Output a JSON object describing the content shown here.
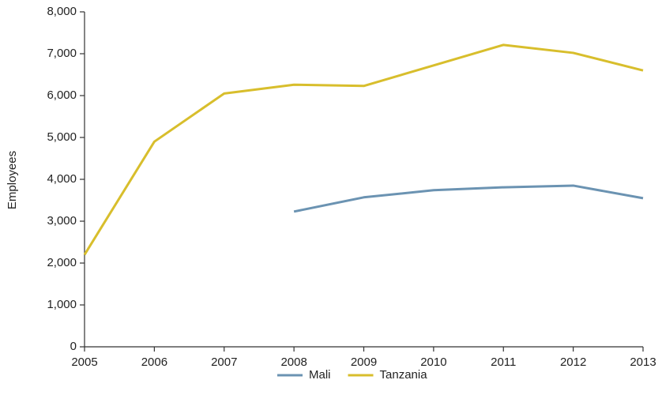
{
  "chart_data": {
    "type": "line",
    "y_label": "Employees",
    "x": [
      2005,
      2006,
      2007,
      2008,
      2009,
      2010,
      2011,
      2012,
      2013
    ],
    "xlim": [
      2005,
      2013
    ],
    "xticks": [
      2005,
      2006,
      2007,
      2008,
      2009,
      2010,
      2011,
      2012,
      2013
    ],
    "ylim": [
      0,
      8000
    ],
    "yticks": [
      0,
      {
        "value": 1000,
        "label": "1,000"
      },
      {
        "value": 2000,
        "label": "2,000"
      },
      {
        "value": 3000,
        "label": "3,000"
      },
      {
        "value": 4000,
        "label": "4,000"
      },
      {
        "value": 5000,
        "label": "5,000"
      },
      {
        "value": 6000,
        "label": "6,000"
      },
      {
        "value": 7000,
        "label": "7,000"
      },
      {
        "value": 8000,
        "label": "8,000"
      }
    ],
    "grid": false,
    "legend": "bottom",
    "series": [
      {
        "name": "Mali",
        "color": "#6b93b2",
        "values": [
          null,
          null,
          null,
          3230,
          3570,
          3740,
          3810,
          3850,
          3550
        ]
      },
      {
        "name": "Tanzania",
        "color": "#d8be2c",
        "values": [
          2200,
          4900,
          6050,
          6260,
          6230,
          6720,
          7210,
          7020,
          6600
        ]
      }
    ]
  }
}
